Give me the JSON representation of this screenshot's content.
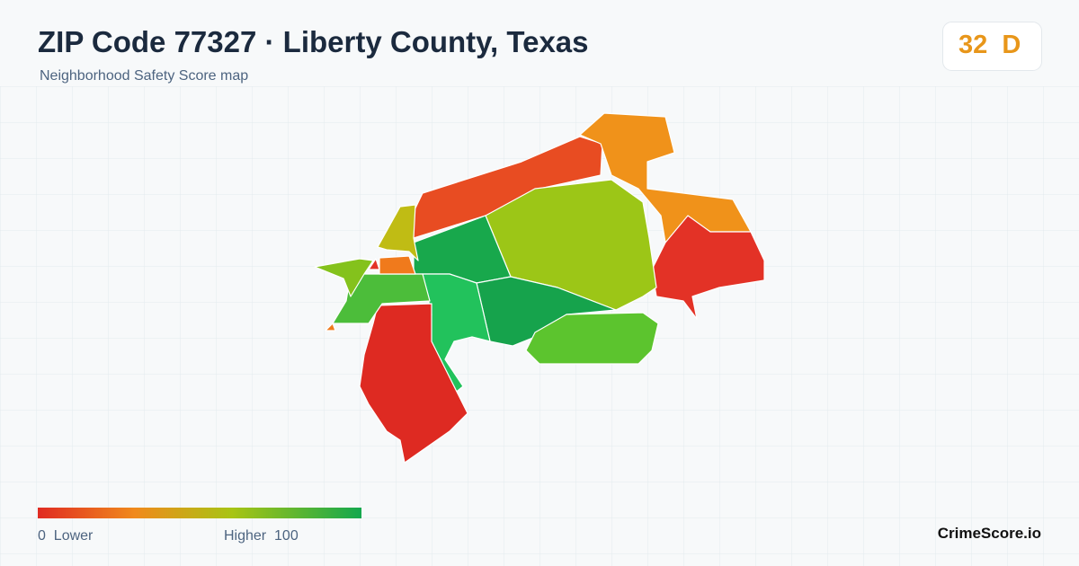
{
  "header": {
    "title": "ZIP Code 77327 · Liberty County, Texas",
    "subtitle": "Neighborhood Safety Score map"
  },
  "score": {
    "value": 32,
    "grade": "D"
  },
  "legend": {
    "min": 0,
    "min_label": "Lower",
    "max_label": "Higher",
    "max": 100
  },
  "brand": "CrimeScore.io"
}
